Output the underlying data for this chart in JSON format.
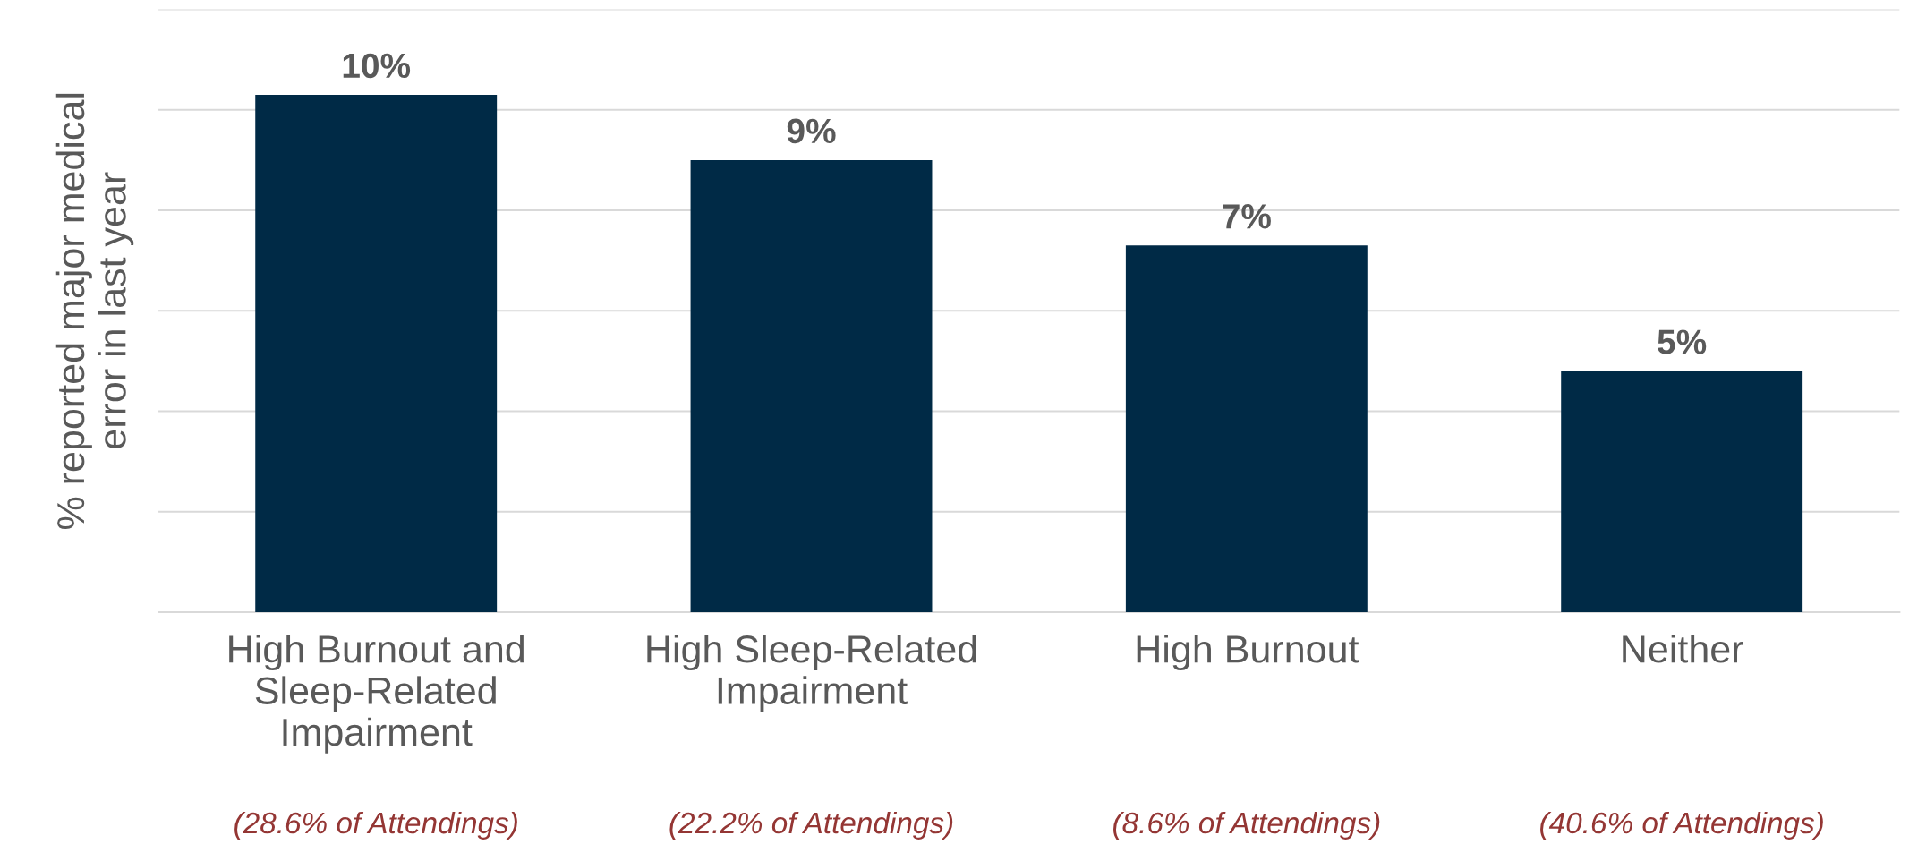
{
  "chart_data": {
    "type": "bar",
    "ylabel": "% reported major medical\nerror in last year",
    "categories": [
      "High Burnout and\nSleep-Related\nImpairment",
      "High Sleep-Related\nImpairment",
      "High Burnout",
      "Neither"
    ],
    "values": [
      10.3,
      9.0,
      7.3,
      4.8
    ],
    "value_labels": [
      "10%",
      "9%",
      "7%",
      "5%"
    ],
    "color": "#002a46",
    "ylim": [
      0,
      12
    ],
    "yticks": [
      {
        "value": 0,
        "label": null
      },
      {
        "value": 2,
        "label": null
      },
      {
        "value": 4,
        "label": null
      },
      {
        "value": 6,
        "label": null
      },
      {
        "value": 8,
        "label": null
      },
      {
        "value": 10,
        "label": null
      },
      {
        "value": 12,
        "label": null
      }
    ],
    "grid": "y",
    "tick_labels": "x",
    "annotations": [
      "(28.6% of Attendings)",
      "(22.2% of Attendings)",
      "(8.6% of Attendings)",
      "(40.6% of Attendings)"
    ]
  }
}
